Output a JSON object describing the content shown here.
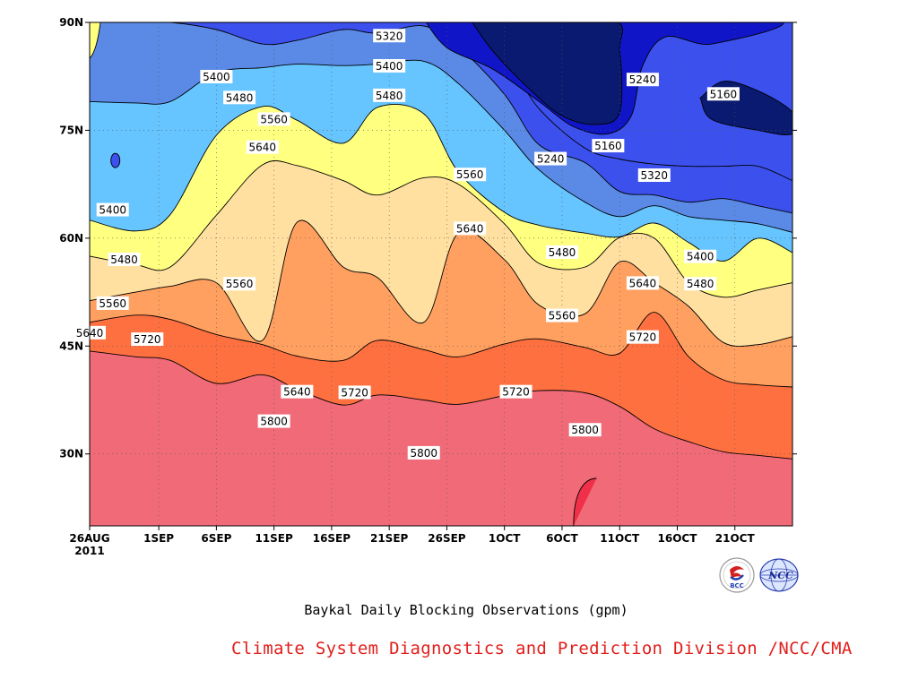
{
  "chart_data": {
    "type": "heatmap",
    "title": "Baykal Daily Blocking Observations (gpm)",
    "credit": "Climate System Diagnostics and Prediction Division /NCC/CMA",
    "logos": [
      "BCC",
      "NCC"
    ],
    "x_tick_labels": [
      "26AUG",
      "1SEP",
      "6SEP",
      "11SEP",
      "16SEP",
      "21SEP",
      "26SEP",
      "1OCT",
      "6OCT",
      "11OCT",
      "16OCT",
      "21OCT"
    ],
    "x_year_label": "2011",
    "y_tick_labels": [
      "30N",
      "45N",
      "60N",
      "75N",
      "90N"
    ],
    "xlim": [
      "2011-08-26",
      "2011-10-26"
    ],
    "ylim": [
      20,
      90
    ],
    "contour_levels": [
      5160,
      5240,
      5320,
      5400,
      5480,
      5560,
      5640,
      5720,
      5800,
      5880
    ],
    "contour_colors": [
      "#0a1a70",
      "#1016c8",
      "#3c50ee",
      "#5a8ae6",
      "#66c4ff",
      "#ffff80",
      "#ffe0a0",
      "#ffa060",
      "#ff7040",
      "#f06a78",
      "#f03048"
    ],
    "isoline_latitudes_by_date": {
      "dates": [
        "2011-08-26",
        "2011-08-30",
        "2011-09-02",
        "2011-09-06",
        "2011-09-10",
        "2011-09-13",
        "2011-09-17",
        "2011-09-20",
        "2011-09-24",
        "2011-09-27",
        "2011-10-01",
        "2011-10-04",
        "2011-10-08",
        "2011-10-11",
        "2011-10-14",
        "2011-10-17",
        "2011-10-20",
        "2011-10-23",
        "2011-10-26"
      ],
      "5800": [
        44.3,
        43.5,
        43.0,
        39.8,
        41.0,
        39.0,
        36.8,
        38.2,
        37.5,
        36.9,
        38.1,
        38.8,
        38.5,
        36.6,
        33.5,
        31.7,
        30.3,
        29.8,
        29.3
      ],
      "5720": [
        48.3,
        49.3,
        48.7,
        46.6,
        45.2,
        43.6,
        43.0,
        45.8,
        44.5,
        43.5,
        45.3,
        46.0,
        44.8,
        44.0,
        49.7,
        43.5,
        40.3,
        39.6,
        39.3
      ],
      "5640": [
        51.3,
        52.5,
        53.3,
        53.8,
        45.8,
        62.2,
        56.0,
        54.5,
        48.3,
        60.7,
        57.0,
        50.7,
        49.5,
        56.7,
        53.8,
        50.5,
        45.5,
        45.2,
        46.3
      ],
      "5560": [
        57.5,
        56.3,
        56.0,
        63.2,
        70.2,
        70.1,
        68.0,
        66.0,
        68.4,
        67.5,
        62.0,
        56.5,
        56.0,
        60.1,
        60.0,
        53.8,
        51.8,
        52.8,
        53.8
      ],
      "5480": [
        62.5,
        61.0,
        63.3,
        74.3,
        78.3,
        76.4,
        73.2,
        78.2,
        77.3,
        69.2,
        63.6,
        61.8,
        60.7,
        60.2,
        62.1,
        59.4,
        56.8,
        60.0,
        58.0
      ],
      "5400": [
        79.0,
        78.8,
        79.0,
        83.0,
        83.7,
        84.2,
        84.0,
        84.2,
        84.6,
        81.5,
        75.0,
        69.5,
        65.0,
        63.0,
        64.5,
        63.0,
        62.5,
        62.0,
        60.8
      ],
      "5320": [
        90.0,
        90.0,
        90.0,
        89.0,
        87.0,
        87.5,
        89.0,
        88.5,
        89.5,
        86.6,
        80.0,
        73.0,
        70.5,
        66.5,
        66.0,
        65.0,
        65.5,
        64.5,
        63.5
      ],
      "5240": [
        null,
        null,
        null,
        null,
        null,
        null,
        null,
        null,
        null,
        88.5,
        85.0,
        78.0,
        72.5,
        71.0,
        70.3,
        70.0,
        70.0,
        70.0,
        68.0
      ]
    },
    "contour_labels": [
      {
        "text": "5320",
        "date": "2011-09-21",
        "lat": 88.1
      },
      {
        "text": "5400",
        "date": "2011-09-06",
        "lat": 82.4
      },
      {
        "text": "5400",
        "date": "2011-09-21",
        "lat": 83.9
      },
      {
        "text": "5240",
        "date": "2011-10-13",
        "lat": 82.0
      },
      {
        "text": "5160",
        "date": "2011-10-20",
        "lat": 80.0
      },
      {
        "text": "5480",
        "date": "2011-09-08",
        "lat": 79.5
      },
      {
        "text": "5480",
        "date": "2011-09-21",
        "lat": 79.8
      },
      {
        "text": "5560",
        "date": "2011-09-11",
        "lat": 76.5
      },
      {
        "text": "5640",
        "date": "2011-09-10",
        "lat": 72.6
      },
      {
        "text": "5160",
        "date": "2011-10-10",
        "lat": 72.8
      },
      {
        "text": "5240",
        "date": "2011-10-05",
        "lat": 71.0
      },
      {
        "text": "5320",
        "date": "2011-10-14",
        "lat": 68.7
      },
      {
        "text": "5560",
        "date": "2011-09-28",
        "lat": 68.8
      },
      {
        "text": "5400",
        "date": "2011-08-28",
        "lat": 63.9
      },
      {
        "text": "5640",
        "date": "2011-09-28",
        "lat": 61.3
      },
      {
        "text": "5480",
        "date": "2011-10-06",
        "lat": 58.0
      },
      {
        "text": "5400",
        "date": "2011-10-18",
        "lat": 57.4
      },
      {
        "text": "5480",
        "date": "2011-08-29",
        "lat": 57.0
      },
      {
        "text": "5640",
        "date": "2011-10-13",
        "lat": 53.7
      },
      {
        "text": "5480",
        "date": "2011-10-18",
        "lat": 53.6
      },
      {
        "text": "5560",
        "date": "2011-09-08",
        "lat": 53.6
      },
      {
        "text": "5560",
        "date": "2011-08-28",
        "lat": 50.9
      },
      {
        "text": "5560",
        "date": "2011-10-06",
        "lat": 49.2
      },
      {
        "text": "5640",
        "date": "2011-08-26",
        "lat": 46.8
      },
      {
        "text": "5720",
        "date": "2011-08-31",
        "lat": 45.9
      },
      {
        "text": "5720",
        "date": "2011-10-13",
        "lat": 46.2
      },
      {
        "text": "5640",
        "date": "2011-09-13",
        "lat": 38.6
      },
      {
        "text": "5720",
        "date": "2011-09-18",
        "lat": 38.5
      },
      {
        "text": "5720",
        "date": "2011-10-02",
        "lat": 38.6
      },
      {
        "text": "5800",
        "date": "2011-09-11",
        "lat": 34.5
      },
      {
        "text": "5800",
        "date": "2011-10-08",
        "lat": 33.3
      },
      {
        "text": "5800",
        "date": "2011-09-24",
        "lat": 30.1
      }
    ],
    "grid": true
  }
}
